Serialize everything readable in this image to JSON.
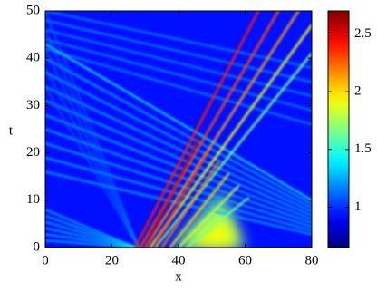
{
  "chart_data": {
    "type": "heatmap",
    "xlabel": "x",
    "ylabel": "t",
    "xlim": [
      0,
      80
    ],
    "ylim": [
      0,
      50
    ],
    "xticks": [
      0,
      20,
      40,
      60,
      80
    ],
    "yticks": [
      0,
      10,
      20,
      30,
      40,
      50
    ],
    "colorbar": {
      "lim": [
        0.65,
        2.7
      ],
      "ticks": [
        1,
        1.5,
        2,
        2.5
      ],
      "colormap": "jet"
    }
  }
}
